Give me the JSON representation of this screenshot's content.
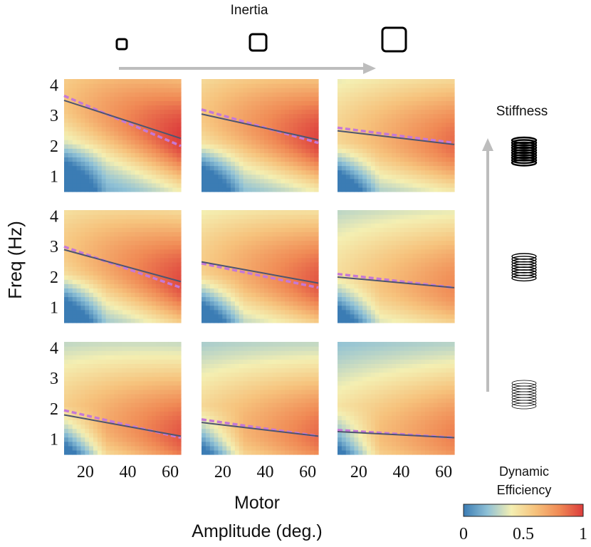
{
  "labels": {
    "inertia": "Inertia",
    "stiffness": "Stiffness",
    "ylabel": "Freq (Hz)",
    "xlabel_line1": "Motor",
    "xlabel_line2": "Amplitude (deg.)",
    "colorbar_title_line1": "Dynamic",
    "colorbar_title_line2": "Efficiency"
  },
  "colors": {
    "colormap": [
      "#3b7cb4",
      "#8fc1d6",
      "#f4efb2",
      "#f6c27c",
      "#f08a55",
      "#dc3c3c"
    ],
    "solid_line": "#4d5570",
    "dashed_line": "#c679d6",
    "arrow": "#bdbdbd"
  },
  "icons": {
    "inertia": [
      "small-square-icon",
      "medium-square-icon",
      "large-square-icon"
    ],
    "stiffness": [
      "stiff-spring-icon",
      "medium-spring-icon",
      "soft-spring-icon"
    ]
  },
  "chart_data": {
    "type": "heatmap",
    "layout": "3x3 grid: columns = inertia (increasing left to right), rows = stiffness (decreasing top to bottom)",
    "xlabel": "Motor Amplitude (deg.)",
    "ylabel": "Freq (Hz)",
    "xlim": [
      10,
      65
    ],
    "ylim": [
      0.5,
      4.2
    ],
    "xticks": [
      "20",
      "40",
      "60"
    ],
    "yticks": [
      "1",
      "2",
      "3",
      "4"
    ],
    "colorbar": {
      "label": "Dynamic Efficiency",
      "range": [
        0,
        1
      ],
      "ticks": [
        "0",
        "0.5",
        "1"
      ]
    },
    "panels": [
      {
        "row": 0,
        "col": 0,
        "peak_ratio": 0.92,
        "solid_line": {
          "x": [
            10,
            65
          ],
          "y": [
            3.5,
            2.25
          ]
        },
        "dashed_line": {
          "x": [
            10,
            65
          ],
          "y": [
            3.65,
            2.0
          ]
        }
      },
      {
        "row": 0,
        "col": 1,
        "peak_ratio": 0.9,
        "solid_line": {
          "x": [
            10,
            65
          ],
          "y": [
            3.05,
            2.2
          ]
        },
        "dashed_line": {
          "x": [
            10,
            65
          ],
          "y": [
            3.2,
            2.1
          ]
        }
      },
      {
        "row": 0,
        "col": 2,
        "peak_ratio": 0.8,
        "solid_line": {
          "x": [
            10,
            65
          ],
          "y": [
            2.5,
            2.05
          ]
        },
        "dashed_line": {
          "x": [
            10,
            65
          ],
          "y": [
            2.6,
            2.1
          ]
        }
      },
      {
        "row": 1,
        "col": 0,
        "peak_ratio": 0.88,
        "solid_line": {
          "x": [
            10,
            65
          ],
          "y": [
            2.9,
            1.85
          ]
        },
        "dashed_line": {
          "x": [
            10,
            65
          ],
          "y": [
            3.0,
            1.65
          ]
        }
      },
      {
        "row": 1,
        "col": 1,
        "peak_ratio": 0.85,
        "solid_line": {
          "x": [
            10,
            65
          ],
          "y": [
            2.5,
            1.8
          ]
        },
        "dashed_line": {
          "x": [
            10,
            65
          ],
          "y": [
            2.45,
            1.65
          ]
        }
      },
      {
        "row": 1,
        "col": 2,
        "peak_ratio": 0.72,
        "solid_line": {
          "x": [
            10,
            65
          ],
          "y": [
            2.0,
            1.65
          ]
        },
        "dashed_line": {
          "x": [
            10,
            65
          ],
          "y": [
            2.1,
            1.65
          ]
        }
      },
      {
        "row": 2,
        "col": 0,
        "peak_ratio": 0.85,
        "solid_line": {
          "x": [
            10,
            65
          ],
          "y": [
            1.8,
            1.1
          ]
        },
        "dashed_line": {
          "x": [
            10,
            65
          ],
          "y": [
            1.95,
            1.05
          ]
        }
      },
      {
        "row": 2,
        "col": 1,
        "peak_ratio": 0.8,
        "solid_line": {
          "x": [
            10,
            65
          ],
          "y": [
            1.55,
            1.1
          ]
        },
        "dashed_line": {
          "x": [
            10,
            65
          ],
          "y": [
            1.65,
            1.1
          ]
        }
      },
      {
        "row": 2,
        "col": 2,
        "peak_ratio": 0.75,
        "solid_line": {
          "x": [
            10,
            65
          ],
          "y": [
            1.25,
            1.05
          ]
        },
        "dashed_line": {
          "x": [
            10,
            65
          ],
          "y": [
            1.3,
            1.05
          ]
        }
      }
    ]
  }
}
